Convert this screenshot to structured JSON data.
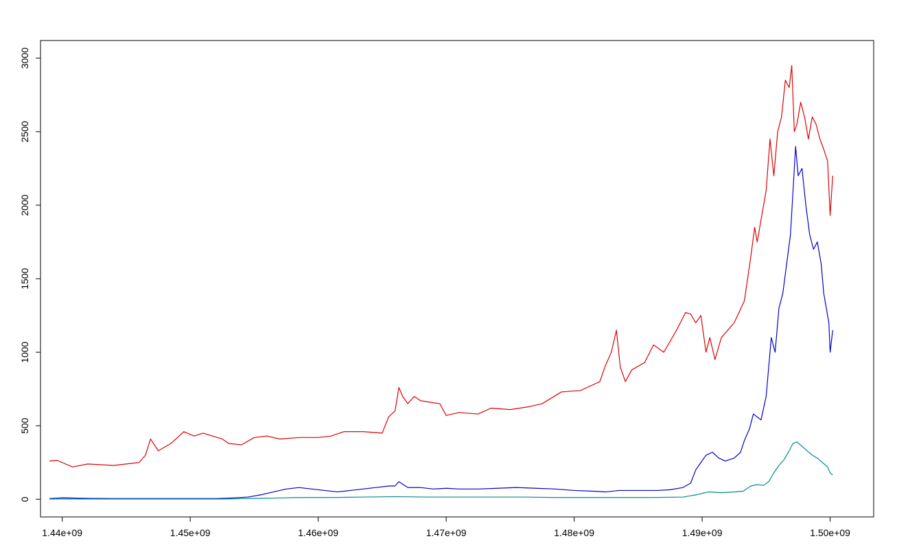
{
  "chart_data": {
    "type": "line",
    "title": "",
    "xlabel": "",
    "ylabel": "",
    "xlim": [
      1438300000,
      1503400000
    ],
    "ylim": [
      -120,
      3120
    ],
    "x_ticks": [
      1440000000,
      1450000000,
      1460000000,
      1470000000,
      1480000000,
      1490000000,
      1500000000
    ],
    "x_tick_labels": [
      "1.44e+09",
      "1.45e+09",
      "1.46e+09",
      "1.47e+09",
      "1.48e+09",
      "1.49e+09",
      "1.50e+09"
    ],
    "y_ticks": [
      0,
      500,
      1000,
      1500,
      2000,
      2500,
      3000
    ],
    "y_tick_labels": [
      "0",
      "500",
      "1000",
      "1500",
      "2000",
      "2500",
      "3000"
    ],
    "grid": false,
    "legend": "none",
    "series": [
      {
        "color": "#dd0000",
        "x": [
          1439000000,
          1439600000,
          1440000000,
          1440800000,
          1442000000,
          1444000000,
          1446000000,
          1446500000,
          1446900000,
          1447500000,
          1448500000,
          1449500000,
          1450300000,
          1451000000,
          1452500000,
          1453000000,
          1454000000,
          1455000000,
          1456000000,
          1457000000,
          1458500000,
          1460000000,
          1461000000,
          1462000000,
          1463500000,
          1465000000,
          1465500000,
          1466000000,
          1466300000,
          1466600000,
          1467000000,
          1467500000,
          1468000000,
          1469500000,
          1470000000,
          1471000000,
          1472500000,
          1473500000,
          1475000000,
          1476500000,
          1477500000,
          1479000000,
          1480500000,
          1481000000,
          1482000000,
          1482400000,
          1482900000,
          1483300000,
          1483600000,
          1484000000,
          1484500000,
          1485500000,
          1486200000,
          1487000000,
          1488000000,
          1488700000,
          1489100000,
          1489500000,
          1489900000,
          1490300000,
          1490600000,
          1491000000,
          1491500000,
          1492500000,
          1493300000,
          1493800000,
          1494100000,
          1494300000,
          1494700000,
          1495000000,
          1495300000,
          1495600000,
          1495900000,
          1496200000,
          1496500000,
          1496800000,
          1497000000,
          1497200000,
          1497400000,
          1497700000,
          1498000000,
          1498300000,
          1498600000,
          1498900000,
          1499200000,
          1499500000,
          1499800000,
          1500000000,
          1500200000
        ],
        "y": [
          260,
          265,
          250,
          220,
          240,
          230,
          250,
          300,
          410,
          330,
          380,
          460,
          430,
          450,
          410,
          380,
          370,
          420,
          430,
          410,
          420,
          420,
          430,
          460,
          460,
          450,
          560,
          600,
          760,
          700,
          650,
          700,
          670,
          650,
          570,
          590,
          580,
          620,
          610,
          630,
          650,
          730,
          740,
          760,
          800,
          900,
          1000,
          1150,
          900,
          800,
          880,
          930,
          1050,
          1000,
          1150,
          1270,
          1260,
          1200,
          1250,
          1000,
          1100,
          950,
          1100,
          1200,
          1350,
          1650,
          1850,
          1750,
          1950,
          2100,
          2450,
          2200,
          2500,
          2600,
          2850,
          2800,
          2950,
          2500,
          2550,
          2700,
          2600,
          2450,
          2600,
          2550,
          2450,
          2380,
          2300,
          1930,
          2200
        ]
      },
      {
        "color": "#0000cc",
        "x": [
          1439000000,
          1439600000,
          1440000000,
          1442000000,
          1444000000,
          1446000000,
          1448000000,
          1450000000,
          1452000000,
          1453000000,
          1454500000,
          1455500000,
          1456500000,
          1457500000,
          1458500000,
          1459500000,
          1460500000,
          1461500000,
          1462500000,
          1463500000,
          1464500000,
          1465500000,
          1466000000,
          1466300000,
          1467000000,
          1468000000,
          1469000000,
          1470000000,
          1471000000,
          1472500000,
          1474000000,
          1475500000,
          1477000000,
          1478500000,
          1480000000,
          1481500000,
          1482500000,
          1483500000,
          1485000000,
          1486500000,
          1487500000,
          1488500000,
          1489100000,
          1489500000,
          1489900000,
          1490300000,
          1490800000,
          1491300000,
          1491800000,
          1492500000,
          1493000000,
          1493300000,
          1493700000,
          1494000000,
          1494300000,
          1494600000,
          1495000000,
          1495200000,
          1495400000,
          1495700000,
          1496000000,
          1496300000,
          1496600000,
          1496900000,
          1497100000,
          1497300000,
          1497500000,
          1497800000,
          1498100000,
          1498400000,
          1498700000,
          1499000000,
          1499300000,
          1499500000,
          1499700000,
          1499900000,
          1500000000,
          1500200000
        ],
        "y": [
          5,
          8,
          10,
          6,
          5,
          5,
          5,
          5,
          5,
          8,
          15,
          30,
          50,
          70,
          80,
          70,
          60,
          50,
          60,
          70,
          80,
          90,
          90,
          120,
          80,
          80,
          70,
          75,
          70,
          70,
          75,
          80,
          75,
          70,
          60,
          55,
          50,
          60,
          60,
          60,
          65,
          80,
          110,
          200,
          250,
          300,
          320,
          280,
          260,
          280,
          320,
          400,
          480,
          580,
          560,
          540,
          700,
          900,
          1100,
          1000,
          1300,
          1400,
          1600,
          1800,
          2100,
          2400,
          2200,
          2250,
          2000,
          1800,
          1700,
          1750,
          1600,
          1400,
          1300,
          1200,
          1000,
          1150
        ]
      },
      {
        "color": "#008b8b",
        "x": [
          1439000000,
          1441000000,
          1444000000,
          1447000000,
          1450000000,
          1452500000,
          1454500000,
          1456500000,
          1458500000,
          1461000000,
          1463500000,
          1466000000,
          1468500000,
          1471000000,
          1473500000,
          1476000000,
          1478500000,
          1481000000,
          1483500000,
          1486000000,
          1488500000,
          1489500000,
          1490500000,
          1491500000,
          1492500000,
          1493200000,
          1493800000,
          1494300000,
          1494800000,
          1495200000,
          1495600000,
          1496000000,
          1496400000,
          1496800000,
          1497100000,
          1497400000,
          1497800000,
          1498200000,
          1498600000,
          1499000000,
          1499400000,
          1499800000,
          1500000000,
          1500200000
        ],
        "y": [
          2,
          2,
          2,
          2,
          2,
          2,
          5,
          8,
          12,
          12,
          15,
          18,
          15,
          15,
          15,
          15,
          12,
          12,
          12,
          12,
          15,
          30,
          50,
          45,
          50,
          55,
          90,
          100,
          95,
          120,
          180,
          230,
          270,
          330,
          380,
          390,
          360,
          330,
          300,
          280,
          250,
          220,
          180,
          165
        ]
      }
    ]
  }
}
